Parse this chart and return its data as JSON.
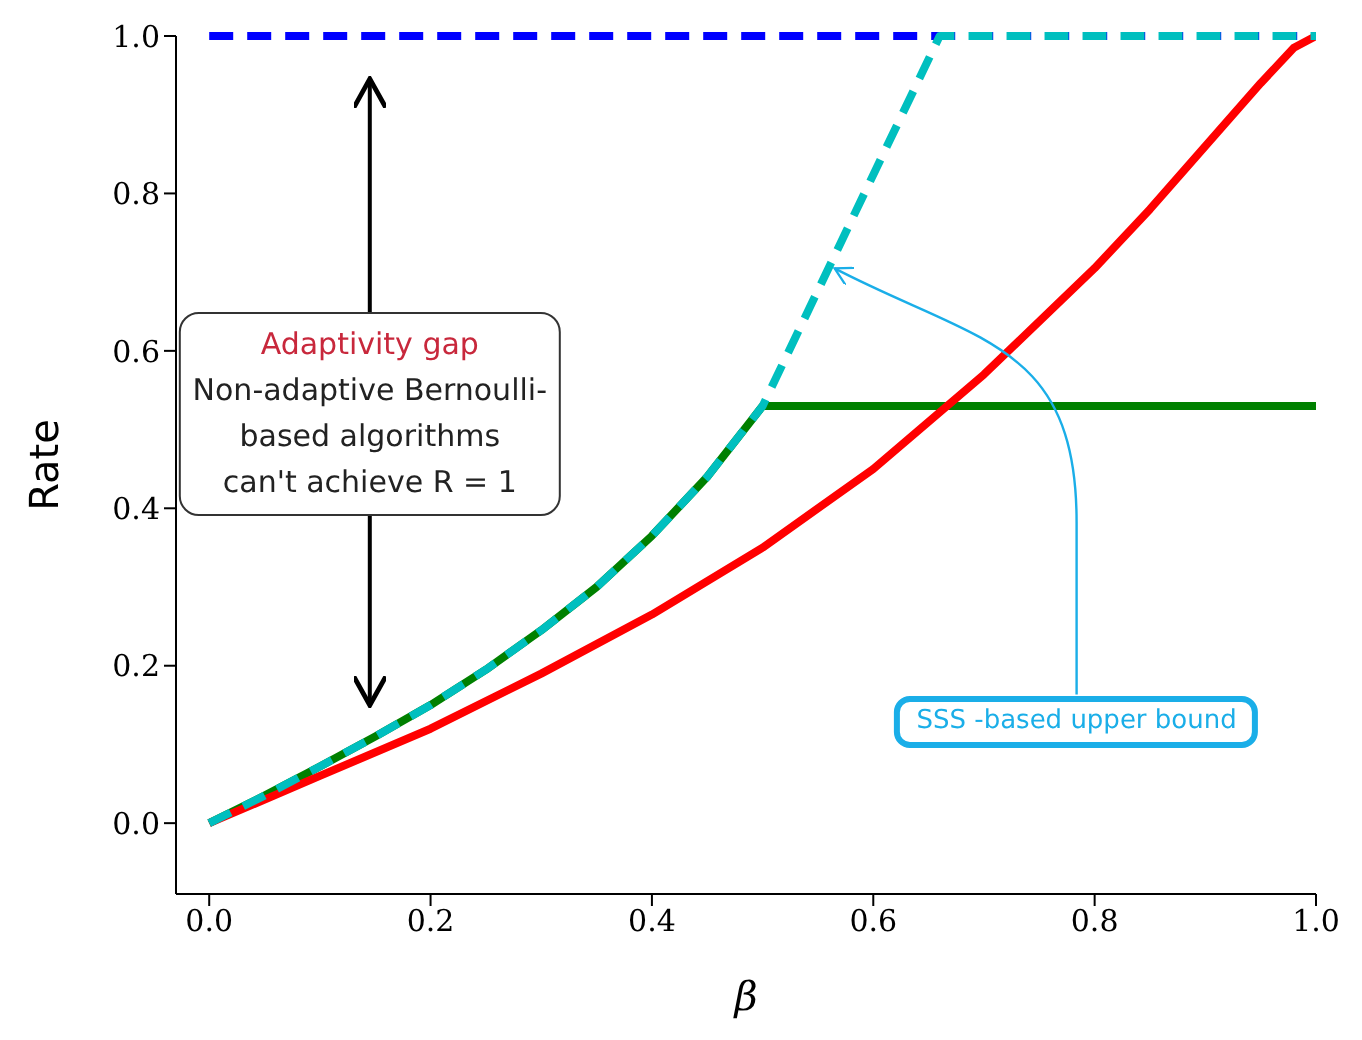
{
  "chart_data": {
    "type": "line",
    "xlabel": "β",
    "ylabel": "Rate",
    "xlim": [
      -0.03,
      1.0
    ],
    "ylim": [
      -0.09,
      1.0
    ],
    "xticks": [
      {
        "value": 0,
        "label": "0.0"
      },
      {
        "value": 0.2,
        "label": "0.2"
      },
      {
        "value": 0.4,
        "label": "0.4"
      },
      {
        "value": 0.6,
        "label": "0.6"
      },
      {
        "value": 0.8,
        "label": "0.8"
      },
      {
        "value": 1,
        "label": "1.0"
      }
    ],
    "yticks": [
      {
        "value": 0,
        "label": "0.0"
      },
      {
        "value": 0.2,
        "label": "0.2"
      },
      {
        "value": 0.4,
        "label": "0.4"
      },
      {
        "value": 0.6,
        "label": "0.6"
      },
      {
        "value": 0.8,
        "label": "0.8"
      },
      {
        "value": 1,
        "label": "1.0"
      }
    ],
    "series": [
      {
        "color": "#0000ff",
        "line_style": "dashed",
        "x": [
          0,
          1
        ],
        "values": [
          1,
          1
        ]
      },
      {
        "color": "#008000",
        "line_style": "solid",
        "x": [
          0,
          0.05,
          0.1,
          0.15,
          0.2,
          0.25,
          0.3,
          0.35,
          0.4,
          0.45,
          0.5,
          0.6,
          0.7,
          0.8,
          0.9,
          1
        ],
        "values": [
          0,
          0.035,
          0.072,
          0.11,
          0.15,
          0.195,
          0.245,
          0.3,
          0.365,
          0.44,
          0.53,
          0.53,
          0.53,
          0.53,
          0.53,
          0.53
        ]
      },
      {
        "color": "#ff0000",
        "line_style": "solid",
        "x": [
          0,
          0.1,
          0.2,
          0.3,
          0.4,
          0.5,
          0.6,
          0.7,
          0.8,
          0.85,
          0.9,
          0.95,
          0.98,
          1
        ],
        "values": [
          0,
          0.06,
          0.12,
          0.19,
          0.265,
          0.35,
          0.45,
          0.57,
          0.705,
          0.78,
          0.86,
          0.94,
          0.985,
          1
        ]
      },
      {
        "color": "#00bfbf",
        "line_style": "dashed",
        "x": [
          0,
          0.05,
          0.1,
          0.15,
          0.2,
          0.25,
          0.3,
          0.35,
          0.4,
          0.45,
          0.5,
          0.66,
          0.8,
          1
        ],
        "values": [
          0,
          0.035,
          0.072,
          0.11,
          0.15,
          0.195,
          0.245,
          0.3,
          0.365,
          0.44,
          0.53,
          1,
          1,
          1
        ]
      }
    ],
    "annotations": [
      "Adaptivity gap",
      "Non-adaptive Bernoulli-\nbased algorithms\ncan't achieve R = 1",
      "SSS -based upper bound"
    ]
  }
}
